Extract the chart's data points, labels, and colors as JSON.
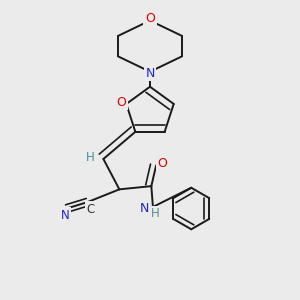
{
  "background_color": "#ebebeb",
  "bond_color": "#1a1a1a",
  "bond_width": 1.4,
  "atom_colors": {
    "O": "#e00000",
    "N": "#2222cc",
    "C": "#333333",
    "H": "#4a9090"
  },
  "font_size": 9
}
